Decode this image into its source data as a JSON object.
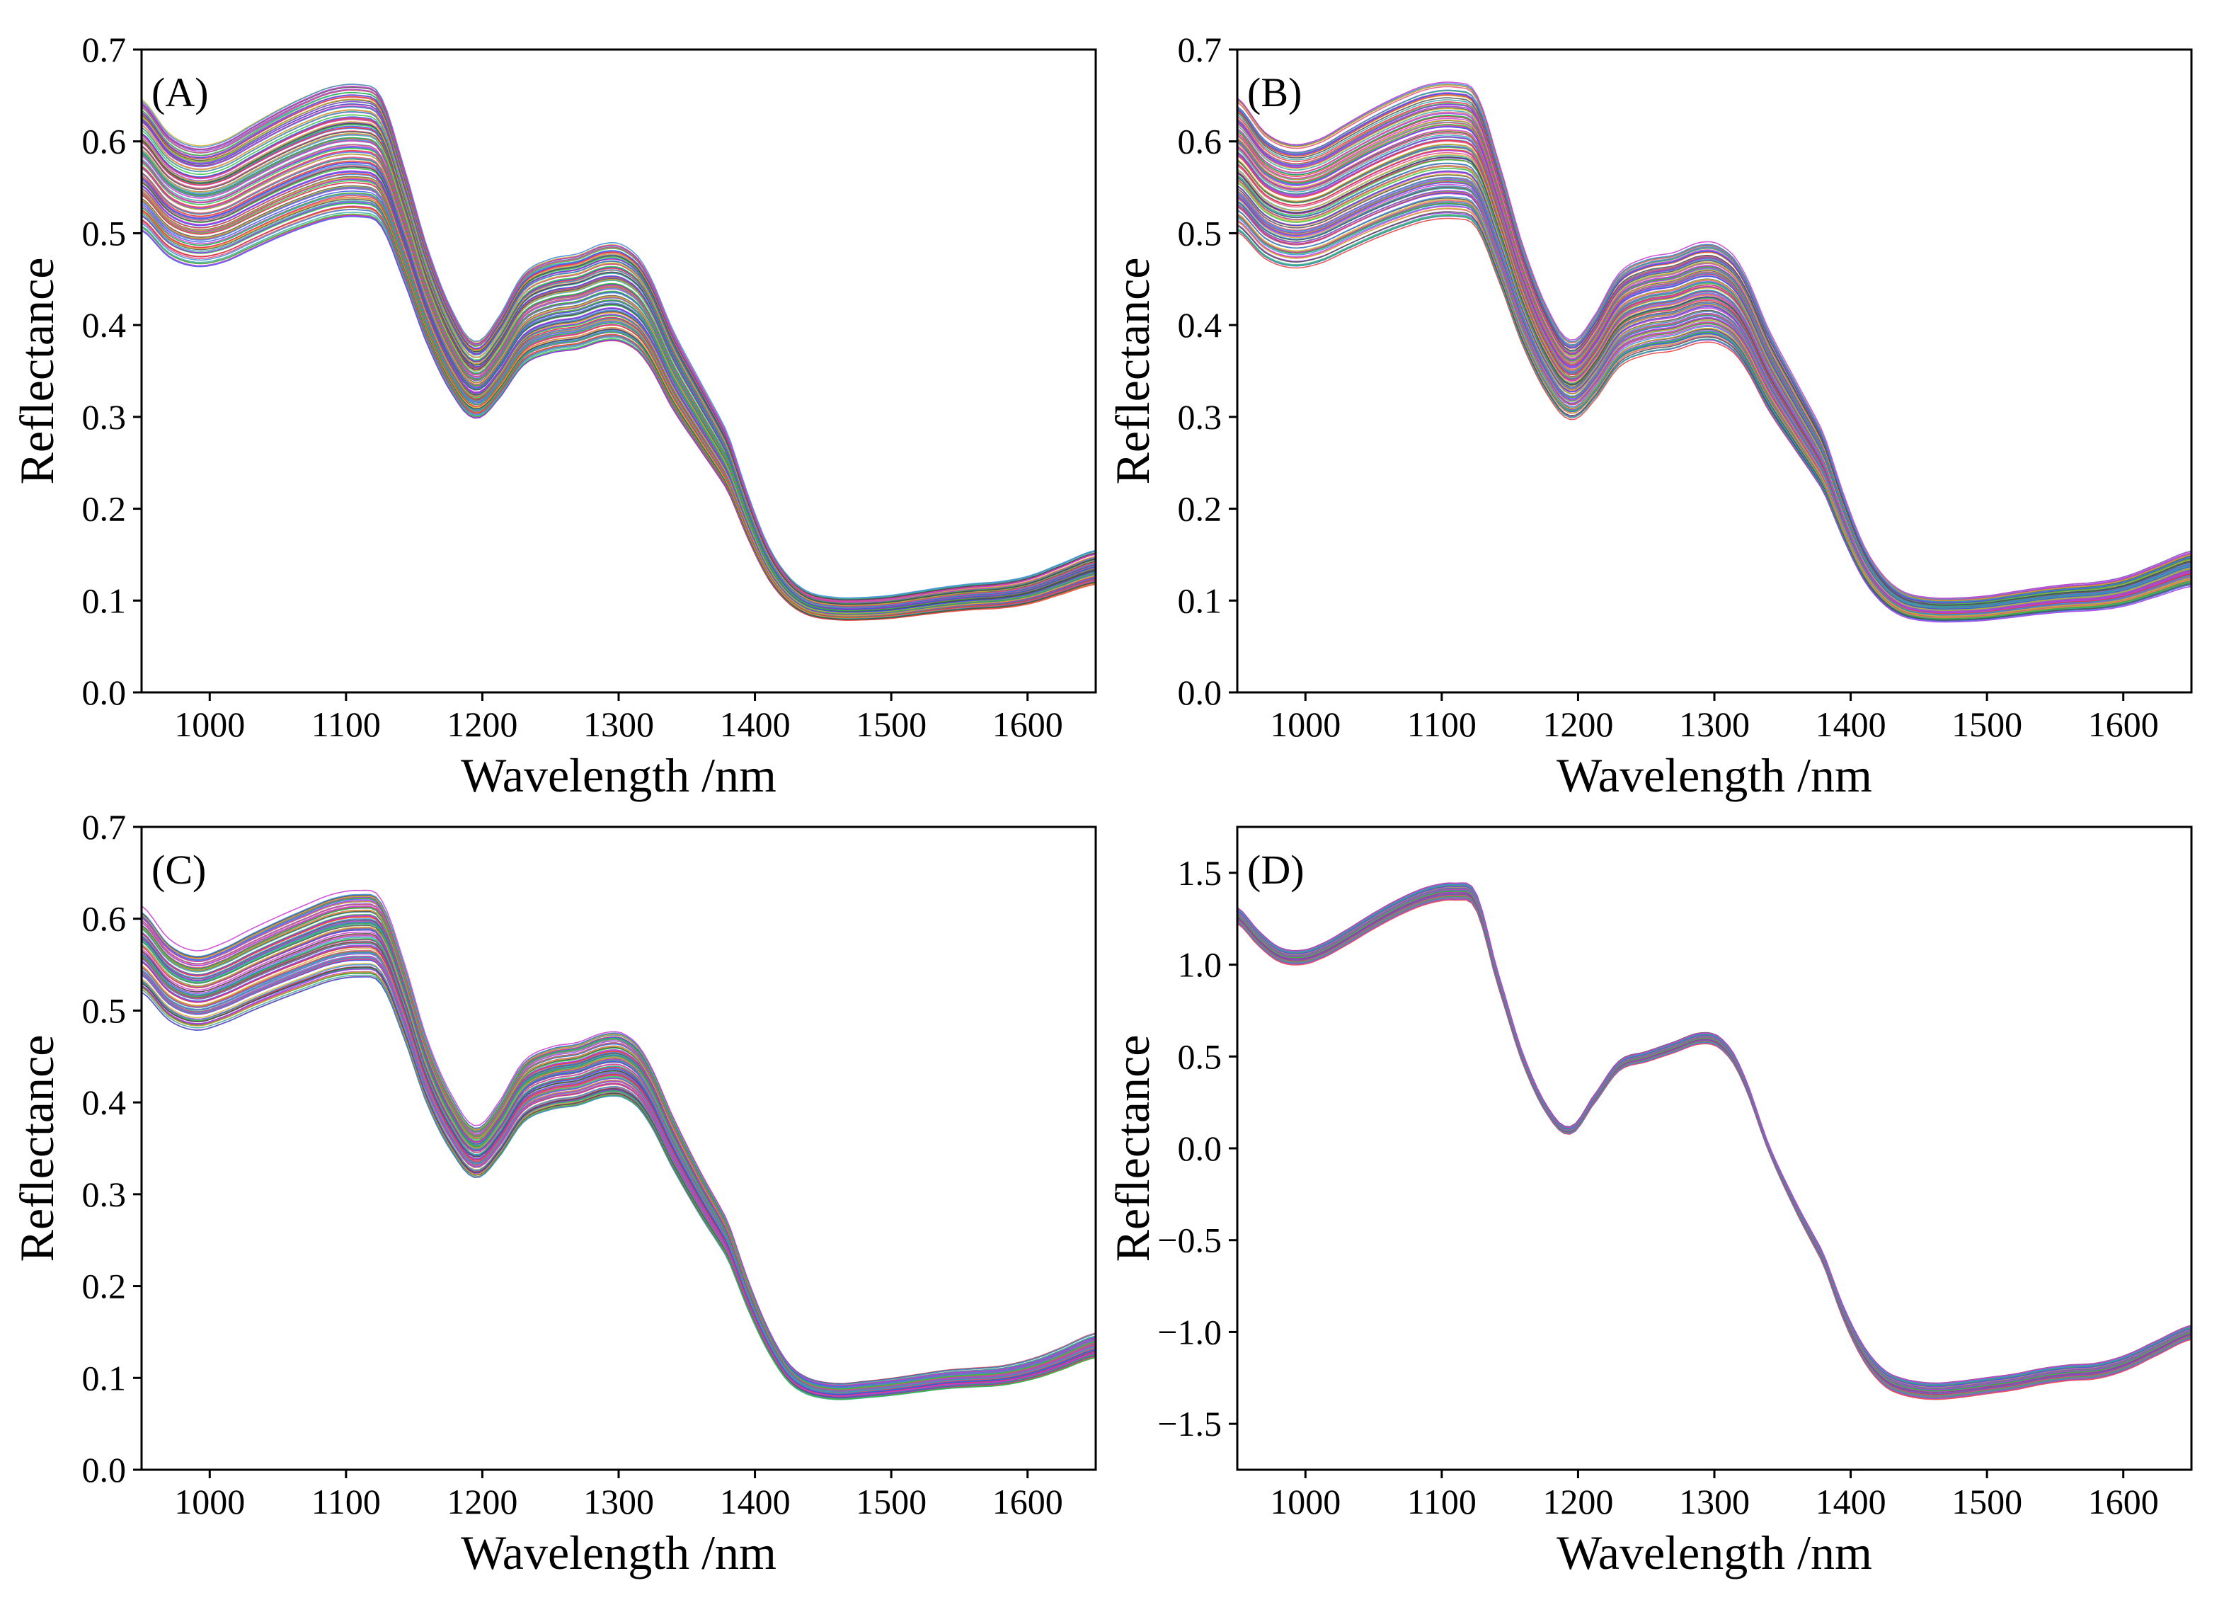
{
  "chart_data": [
    {
      "type": "line",
      "panel_label": "(A)",
      "xlabel": "Wavelength /nm",
      "ylabel": "Reflectance",
      "xlim": [
        950,
        1650
      ],
      "ylim": [
        0.0,
        0.7
      ],
      "xticks": [
        1000,
        1100,
        1200,
        1300,
        1400,
        1500,
        1600
      ],
      "xtick_labels": [
        "1000",
        "1100",
        "1200",
        "1300",
        "1400",
        "1500",
        "1600"
      ],
      "yticks": [
        0.0,
        0.1,
        0.2,
        0.3,
        0.4,
        0.5,
        0.6,
        0.7
      ],
      "ytick_labels": [
        "0.0",
        "0.1",
        "0.2",
        "0.3",
        "0.4",
        "0.5",
        "0.6",
        "0.7"
      ],
      "reference_spectrum": {
        "x": [
          950,
          970,
          990,
          1010,
          1030,
          1050,
          1070,
          1090,
          1110,
          1125,
          1140,
          1160,
          1180,
          1195,
          1210,
          1230,
          1250,
          1270,
          1290,
          1305,
          1320,
          1340,
          1360,
          1380,
          1395,
          1410,
          1425,
          1440,
          1460,
          1480,
          1500,
          1520,
          1540,
          1560,
          1580,
          1600,
          1620,
          1650
        ],
        "y": [
          0.575,
          0.542,
          0.53,
          0.535,
          0.55,
          0.565,
          0.578,
          0.588,
          0.59,
          0.58,
          0.52,
          0.43,
          0.365,
          0.34,
          0.36,
          0.405,
          0.42,
          0.425,
          0.435,
          0.432,
          0.41,
          0.35,
          0.3,
          0.25,
          0.19,
          0.14,
          0.11,
          0.095,
          0.09,
          0.09,
          0.092,
          0.096,
          0.1,
          0.103,
          0.105,
          0.11,
          0.12,
          0.135
        ]
      },
      "series_count": 120,
      "spread": {
        "low": -0.055,
        "high": 0.055
      },
      "series_colors": [
        "#e83a3a",
        "#3a56e8",
        "#2fbf3a",
        "#9a3ae0",
        "#37a7a7",
        "#e0507a",
        "#4a4a4a",
        "#d0b030",
        "#3a8ad8",
        "#c93ad0"
      ]
    },
    {
      "type": "line",
      "panel_label": "(B)",
      "xlabel": "Wavelength /nm",
      "ylabel": "Reflectance",
      "xlim": [
        950,
        1650
      ],
      "ylim": [
        0.0,
        0.7
      ],
      "xticks": [
        1000,
        1100,
        1200,
        1300,
        1400,
        1500,
        1600
      ],
      "xtick_labels": [
        "1000",
        "1100",
        "1200",
        "1300",
        "1400",
        "1500",
        "1600"
      ],
      "yticks": [
        0.0,
        0.1,
        0.2,
        0.3,
        0.4,
        0.5,
        0.6,
        0.7
      ],
      "ytick_labels": [
        "0.0",
        "0.1",
        "0.2",
        "0.3",
        "0.4",
        "0.5",
        "0.6",
        "0.7"
      ],
      "reference_spectrum": {
        "x": [
          950,
          970,
          990,
          1010,
          1030,
          1050,
          1070,
          1090,
          1110,
          1125,
          1140,
          1160,
          1180,
          1195,
          1210,
          1230,
          1250,
          1270,
          1290,
          1305,
          1320,
          1340,
          1360,
          1380,
          1395,
          1410,
          1425,
          1440,
          1460,
          1480,
          1500,
          1520,
          1540,
          1560,
          1580,
          1600,
          1620,
          1650
        ],
        "y": [
          0.575,
          0.542,
          0.53,
          0.535,
          0.55,
          0.565,
          0.578,
          0.588,
          0.59,
          0.58,
          0.52,
          0.43,
          0.365,
          0.34,
          0.36,
          0.405,
          0.42,
          0.425,
          0.435,
          0.432,
          0.41,
          0.35,
          0.3,
          0.25,
          0.19,
          0.14,
          0.11,
          0.095,
          0.09,
          0.09,
          0.092,
          0.096,
          0.1,
          0.103,
          0.105,
          0.11,
          0.12,
          0.135
        ]
      },
      "series_count": 120,
      "spread": {
        "low": -0.055,
        "high": 0.055
      },
      "series_colors": [
        "#e83a3a",
        "#3a56e8",
        "#2fbf3a",
        "#9a3ae0",
        "#37a7a7",
        "#e0507a",
        "#4a4a4a",
        "#d0b030",
        "#3a8ad8",
        "#c93ad0"
      ]
    },
    {
      "type": "line",
      "panel_label": "(C)",
      "xlabel": "Wavelength /nm",
      "ylabel": "Reflectance",
      "xlim": [
        950,
        1650
      ],
      "ylim": [
        0.0,
        0.7
      ],
      "xticks": [
        1000,
        1100,
        1200,
        1300,
        1400,
        1500,
        1600
      ],
      "xtick_labels": [
        "1000",
        "1100",
        "1200",
        "1300",
        "1400",
        "1500",
        "1600"
      ],
      "yticks": [
        0.0,
        0.1,
        0.2,
        0.3,
        0.4,
        0.5,
        0.6,
        0.7
      ],
      "ytick_labels": [
        "0.0",
        "0.1",
        "0.2",
        "0.3",
        "0.4",
        "0.5",
        "0.6",
        "0.7"
      ],
      "reference_spectrum": {
        "x": [
          950,
          970,
          990,
          1010,
          1030,
          1050,
          1070,
          1090,
          1110,
          1125,
          1140,
          1160,
          1180,
          1195,
          1210,
          1230,
          1250,
          1270,
          1290,
          1305,
          1320,
          1340,
          1360,
          1380,
          1395,
          1410,
          1425,
          1440,
          1460,
          1480,
          1500,
          1520,
          1540,
          1560,
          1580,
          1600,
          1620,
          1650
        ],
        "y": [
          0.565,
          0.532,
          0.52,
          0.528,
          0.542,
          0.555,
          0.567,
          0.578,
          0.582,
          0.575,
          0.52,
          0.43,
          0.37,
          0.345,
          0.365,
          0.41,
          0.425,
          0.43,
          0.44,
          0.438,
          0.415,
          0.355,
          0.3,
          0.25,
          0.19,
          0.14,
          0.105,
          0.09,
          0.085,
          0.087,
          0.09,
          0.094,
          0.098,
          0.1,
          0.102,
          0.108,
          0.118,
          0.135
        ]
      },
      "series_count": 110,
      "spread": {
        "low": -0.035,
        "high": 0.035
      },
      "series_colors": [
        "#e83a3a",
        "#3a56e8",
        "#2fbf3a",
        "#9a3ae0",
        "#37a7a7",
        "#e0507a",
        "#4a4a4a",
        "#d0b030",
        "#3a8ad8",
        "#c93ad0"
      ]
    },
    {
      "type": "line",
      "panel_label": "(D)",
      "xlabel": "Wavelength /nm",
      "ylabel": "Reflectance",
      "xlim": [
        950,
        1650
      ],
      "ylim": [
        -1.75,
        1.75
      ],
      "xticks": [
        1000,
        1100,
        1200,
        1300,
        1400,
        1500,
        1600
      ],
      "xtick_labels": [
        "1000",
        "1100",
        "1200",
        "1300",
        "1400",
        "1500",
        "1600"
      ],
      "yticks": [
        -1.5,
        -1.0,
        -0.5,
        0.0,
        0.5,
        1.0,
        1.5
      ],
      "ytick_labels": [
        "−1.5",
        "−1.0",
        "−0.5",
        "0.0",
        "0.5",
        "1.0",
        "1.5"
      ],
      "reference_spectrum": {
        "x": [
          950,
          965,
          980,
          995,
          1010,
          1030,
          1050,
          1070,
          1090,
          1110,
          1125,
          1140,
          1160,
          1180,
          1195,
          1210,
          1230,
          1250,
          1270,
          1290,
          1305,
          1320,
          1340,
          1360,
          1380,
          1395,
          1410,
          1425,
          1440,
          1460,
          1480,
          1500,
          1520,
          1540,
          1560,
          1580,
          1600,
          1620,
          1650
        ],
        "y": [
          1.27,
          1.15,
          1.06,
          1.04,
          1.07,
          1.15,
          1.24,
          1.32,
          1.38,
          1.4,
          1.35,
          0.95,
          0.48,
          0.18,
          0.1,
          0.25,
          0.45,
          0.5,
          0.55,
          0.6,
          0.57,
          0.4,
          0.0,
          -0.32,
          -0.6,
          -0.9,
          -1.12,
          -1.25,
          -1.3,
          -1.32,
          -1.31,
          -1.29,
          -1.27,
          -1.24,
          -1.22,
          -1.21,
          -1.17,
          -1.1,
          -1.0
        ]
      },
      "series_count": 60,
      "spread": {
        "low": -0.035,
        "high": 0.035
      },
      "series_colors": [
        "#e83a3a",
        "#3a56e8",
        "#2fbf3a",
        "#9a3ae0",
        "#37a7a7",
        "#e0507a",
        "#4a4a4a",
        "#d0b030",
        "#3a8ad8",
        "#c93ad0"
      ]
    }
  ]
}
